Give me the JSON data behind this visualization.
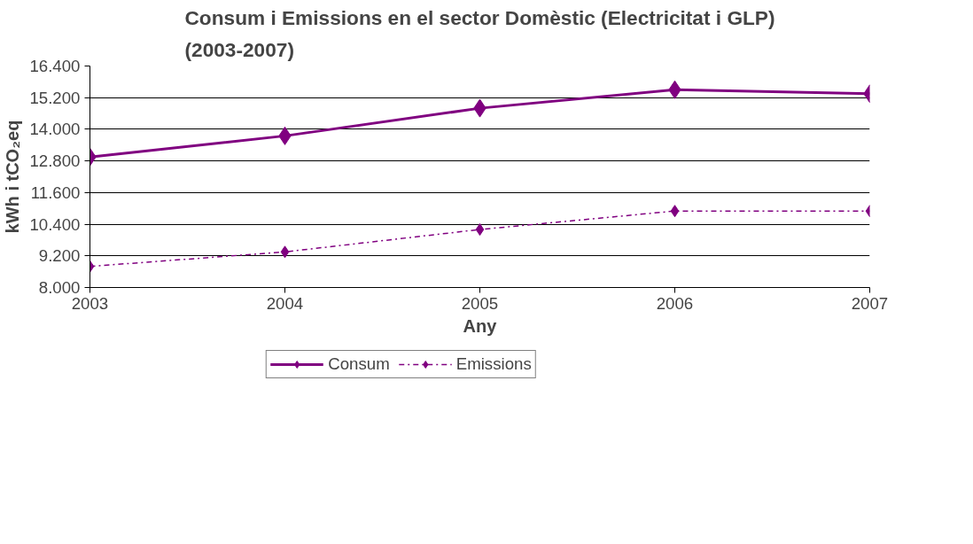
{
  "chart_data": {
    "type": "line",
    "title": "Consum i Emissions en el sector Domèstic (Electricitat i GLP)\n(2003-2007)",
    "xlabel": "Any",
    "ylabel": "kWh i tCO₂eq",
    "x": [
      2003,
      2004,
      2005,
      2006,
      2007
    ],
    "series": [
      {
        "name": "Consum",
        "color": "#800080",
        "values": [
          12950,
          13750,
          14800,
          15500,
          15350
        ],
        "line_style": "solid"
      },
      {
        "name": "Emissions",
        "color": "#800080",
        "values": [
          8800,
          9350,
          10200,
          10900,
          10900
        ],
        "line_style": "dashdot"
      }
    ],
    "xlim": [
      2003,
      2007
    ],
    "xticks": [
      2003,
      2004,
      2005,
      2006,
      2007
    ],
    "ylim": [
      8000,
      16400
    ],
    "yticks": [
      {
        "value": 8000,
        "label": "8.000"
      },
      {
        "value": 9200,
        "label": "9.200"
      },
      {
        "value": 10400,
        "label": "10.400"
      },
      {
        "value": 11600,
        "label": "11.600"
      },
      {
        "value": 12800,
        "label": "12.800"
      },
      {
        "value": 14000,
        "label": "14.000"
      },
      {
        "value": 15200,
        "label": "15.200"
      },
      {
        "value": 16400,
        "label": "16.400"
      }
    ],
    "grid": "y",
    "legend": "bottom",
    "marker": "diamond"
  }
}
